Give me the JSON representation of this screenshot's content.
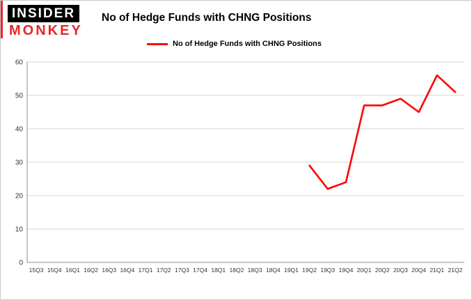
{
  "brand": {
    "top": "INSIDER",
    "bottom": "MONKEY"
  },
  "header": {
    "title": "No of Hedge Funds with CHNG Positions"
  },
  "legend": {
    "label": "No of Hedge Funds with CHNG Positions"
  },
  "colors": {
    "series": "#ff0000",
    "grid": "#d6d6d6",
    "axis": "#8c8c8c",
    "tick_text": "#333333",
    "brand_red": "#e8262a",
    "brand_black": "#000000"
  },
  "chart_data": {
    "type": "line",
    "title": "No of Hedge Funds with CHNG Positions",
    "xlabel": "",
    "ylabel": "",
    "ylim": [
      0,
      60
    ],
    "yticks": [
      0,
      10,
      20,
      30,
      40,
      50,
      60
    ],
    "grid": true,
    "legend_position": "top-left",
    "categories": [
      "15Q3",
      "15Q4",
      "16Q1",
      "16Q2",
      "16Q3",
      "16Q4",
      "17Q1",
      "17Q2",
      "17Q3",
      "17Q4",
      "18Q1",
      "18Q2",
      "18Q3",
      "18Q4",
      "19Q1",
      "19Q2",
      "19Q3",
      "19Q4",
      "20Q1",
      "20Q2",
      "20Q3",
      "20Q4",
      "21Q1",
      "21Q2"
    ],
    "series": [
      {
        "name": "No of Hedge Funds with CHNG Positions",
        "color": "#ff0000",
        "values": [
          null,
          null,
          null,
          null,
          null,
          null,
          null,
          null,
          null,
          null,
          null,
          null,
          null,
          null,
          null,
          29,
          22,
          24,
          47,
          47,
          49,
          45,
          56,
          51
        ]
      }
    ]
  }
}
